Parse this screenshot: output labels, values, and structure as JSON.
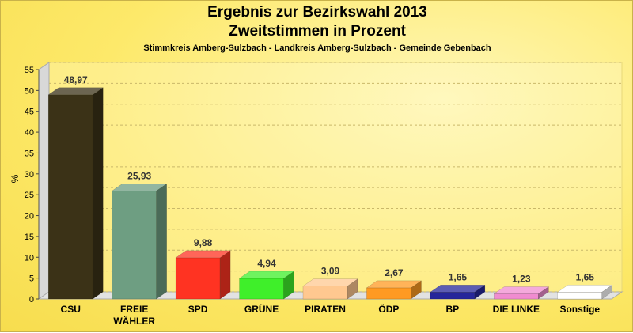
{
  "chart_data": {
    "type": "bar",
    "title": "Ergebnis zur Bezirkswahl 2013",
    "subtitle": "Zweitstimmen in Prozent",
    "subsubtitle": "Stimmkreis Amberg-Sulzbach - Landkreis Amberg-Sulzbach - Gemeinde Gebenbach",
    "ylabel": "%",
    "ylim": [
      0,
      55
    ],
    "yticks": [
      0,
      5,
      10,
      15,
      20,
      25,
      30,
      35,
      40,
      45,
      50,
      55
    ],
    "categories": [
      "CSU",
      "FREIE WÄHLER",
      "SPD",
      "GRÜNE",
      "PIRATEN",
      "ÖDP",
      "BP",
      "DIE LINKE",
      "Sonstige"
    ],
    "category_lines": [
      [
        "CSU"
      ],
      [
        "FREIE",
        "WÄHLER"
      ],
      [
        "SPD"
      ],
      [
        "GRÜNE"
      ],
      [
        "PIRATEN"
      ],
      [
        "ÖDP"
      ],
      [
        "BP"
      ],
      [
        "DIE LINKE"
      ],
      [
        "Sonstige"
      ]
    ],
    "values": [
      48.97,
      25.93,
      9.88,
      4.94,
      3.09,
      2.67,
      1.65,
      1.23,
      1.65
    ],
    "value_labels": [
      "48,97",
      "25,93",
      "9,88",
      "4,94",
      "3,09",
      "2,67",
      "1,65",
      "1,23",
      "1,65"
    ],
    "colors": [
      "#3b3217",
      "#6e9e82",
      "#ff3322",
      "#3fef2a",
      "#ffc890",
      "#ff9a22",
      "#26269a",
      "#f08cd0",
      "#ffffff"
    ],
    "grid": true,
    "legend": "none"
  }
}
